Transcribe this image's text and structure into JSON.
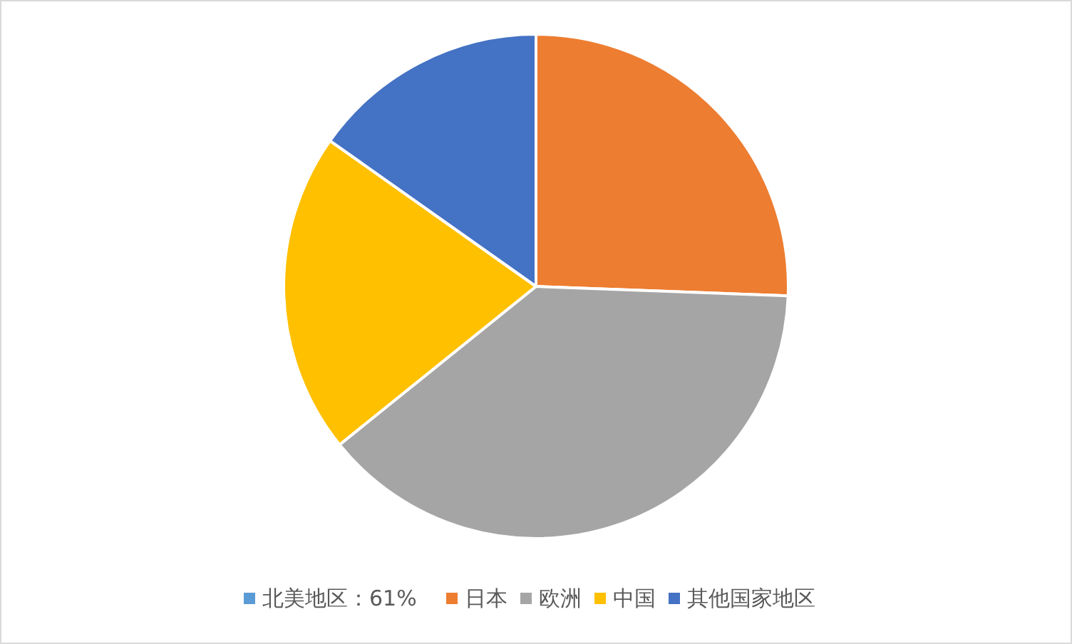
{
  "chart_data": {
    "type": "pie",
    "categories": [
      "北美地区：61%",
      "日本",
      "欧洲",
      "中国",
      "其他国家地区"
    ],
    "values": [
      0,
      25.6,
      38.6,
      20.6,
      15.2
    ],
    "colors": [
      "#5b9bd5",
      "#ed7d31",
      "#a5a5a5",
      "#ffc000",
      "#4472c4"
    ],
    "legend": "bottom"
  }
}
